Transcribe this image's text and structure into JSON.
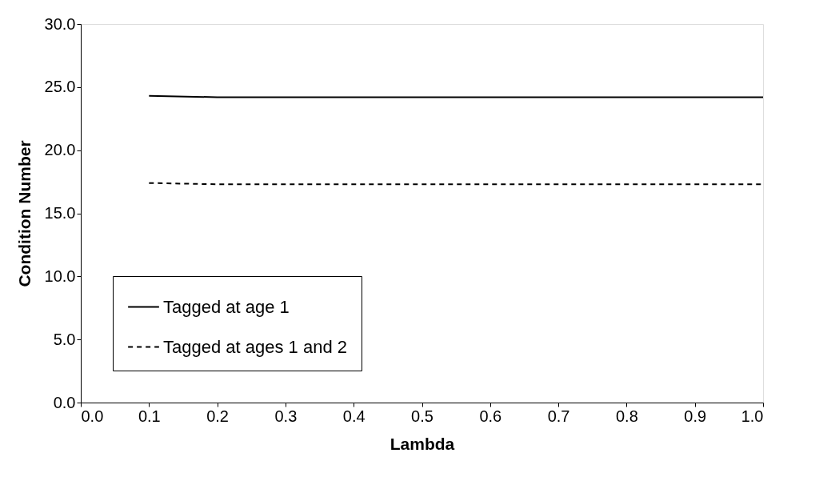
{
  "chart_data": {
    "type": "line",
    "xlabel": "Lambda",
    "ylabel": "Condition Number",
    "x": [
      0.1,
      0.2,
      0.3,
      0.4,
      0.5,
      0.6,
      0.7,
      0.8,
      0.9,
      1.0
    ],
    "series": [
      {
        "name": "Tagged at age 1",
        "color": "#000000",
        "line_style": "solid",
        "values": [
          24.3,
          24.2,
          24.2,
          24.2,
          24.2,
          24.2,
          24.2,
          24.2,
          24.2,
          24.2
        ]
      },
      {
        "name": "Tagged at ages 1 and 2",
        "color": "#000000",
        "line_style": "dashed",
        "values": [
          17.4,
          17.3,
          17.3,
          17.3,
          17.3,
          17.3,
          17.3,
          17.3,
          17.3,
          17.3
        ]
      }
    ],
    "xlim": [
      0,
      1.0
    ],
    "ylim": [
      0,
      30
    ],
    "xticks": [
      {
        "value": 0,
        "label": "0.0"
      },
      0.1,
      0.2,
      0.3,
      0.4,
      0.5,
      0.6,
      0.7,
      0.8,
      0.9,
      {
        "value": 1,
        "label": "1.0"
      }
    ],
    "yticks": [
      {
        "value": 0,
        "label": "0.0"
      },
      {
        "value": 5,
        "label": "5.0"
      },
      {
        "value": 10,
        "label": "10.0"
      },
      {
        "value": 15,
        "label": "15.0"
      },
      {
        "value": 20,
        "label": "20.0"
      },
      {
        "value": 25,
        "label": "25.0"
      },
      {
        "value": 30,
        "label": "30.0"
      }
    ],
    "grid": false,
    "legend": "bottom left",
    "marker": "none"
  }
}
